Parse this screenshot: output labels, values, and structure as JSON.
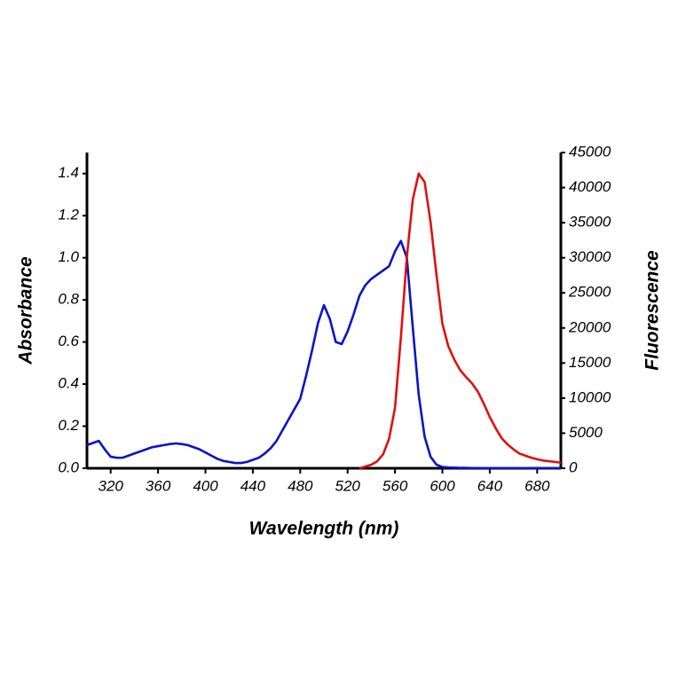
{
  "chart_data": {
    "type": "line",
    "x_label": "Wavelength (nm)",
    "y_label": "Absorbance",
    "y2_label": "Fluorescence",
    "x": [
      300,
      305,
      310,
      315,
      320,
      325,
      330,
      335,
      340,
      345,
      350,
      355,
      360,
      365,
      370,
      375,
      380,
      385,
      390,
      395,
      400,
      405,
      410,
      415,
      420,
      425,
      430,
      435,
      440,
      445,
      450,
      455,
      460,
      465,
      470,
      475,
      480,
      485,
      490,
      495,
      500,
      505,
      510,
      515,
      520,
      525,
      530,
      535,
      540,
      545,
      550,
      555,
      560,
      565,
      570,
      575,
      580,
      585,
      590,
      595,
      600,
      605,
      610,
      615,
      620,
      625,
      630,
      635,
      640,
      645,
      650,
      655,
      660,
      665,
      670,
      675,
      680,
      685,
      690,
      695,
      700
    ],
    "series": [
      {
        "name": "Absorbance",
        "color": "#0a14c8",
        "axis": "y",
        "values": [
          0.11,
          0.12,
          0.13,
          0.09,
          0.055,
          0.05,
          0.05,
          0.06,
          0.07,
          0.08,
          0.09,
          0.1,
          0.105,
          0.11,
          0.115,
          0.118,
          0.115,
          0.11,
          0.1,
          0.09,
          0.075,
          0.06,
          0.045,
          0.035,
          0.03,
          0.025,
          0.025,
          0.03,
          0.04,
          0.05,
          0.07,
          0.095,
          0.13,
          0.18,
          0.23,
          0.28,
          0.33,
          0.44,
          0.56,
          0.69,
          0.775,
          0.71,
          0.6,
          0.59,
          0.65,
          0.73,
          0.82,
          0.87,
          0.9,
          0.92,
          0.94,
          0.96,
          1.03,
          1.08,
          1.0,
          0.67,
          0.35,
          0.15,
          0.055,
          0.017,
          0.006,
          0.004,
          0.003,
          0.002,
          0.002,
          0.001,
          0.001,
          0.001,
          0.001,
          0.001,
          0.001,
          0.001,
          0.001,
          0.001,
          0.001,
          0,
          0,
          0,
          0,
          0,
          0
        ]
      },
      {
        "name": "Fluorescence",
        "color": "#e01010",
        "axis": "y2",
        "values": [
          null,
          null,
          null,
          null,
          null,
          null,
          null,
          null,
          null,
          null,
          null,
          null,
          null,
          null,
          null,
          null,
          null,
          null,
          null,
          null,
          null,
          null,
          null,
          null,
          null,
          null,
          null,
          null,
          null,
          null,
          null,
          null,
          null,
          null,
          null,
          null,
          null,
          null,
          null,
          null,
          null,
          null,
          null,
          null,
          null,
          null,
          0,
          250,
          500,
          1000,
          2000,
          4200,
          8600,
          18700,
          30100,
          38300,
          42000,
          40800,
          35100,
          27600,
          20600,
          17400,
          15500,
          14000,
          13000,
          12100,
          10900,
          9200,
          7300,
          5700,
          4300,
          3400,
          2700,
          2100,
          1800,
          1500,
          1300,
          1100,
          1000,
          900,
          800
        ]
      }
    ],
    "xlim": [
      300,
      700
    ],
    "xticks": [
      320,
      360,
      400,
      440,
      480,
      520,
      560,
      600,
      640,
      680
    ],
    "ylim": [
      0,
      1.5
    ],
    "yticks": [
      {
        "value": 0,
        "label": "0.0"
      },
      0.2,
      0.4,
      0.6,
      0.8,
      {
        "value": 1,
        "label": "1.0"
      },
      1.2,
      1.4
    ],
    "y2lim": [
      0,
      45000
    ],
    "y2ticks": [
      0,
      5000,
      10000,
      15000,
      20000,
      25000,
      30000,
      35000,
      40000,
      45000
    ],
    "grid": false
  }
}
